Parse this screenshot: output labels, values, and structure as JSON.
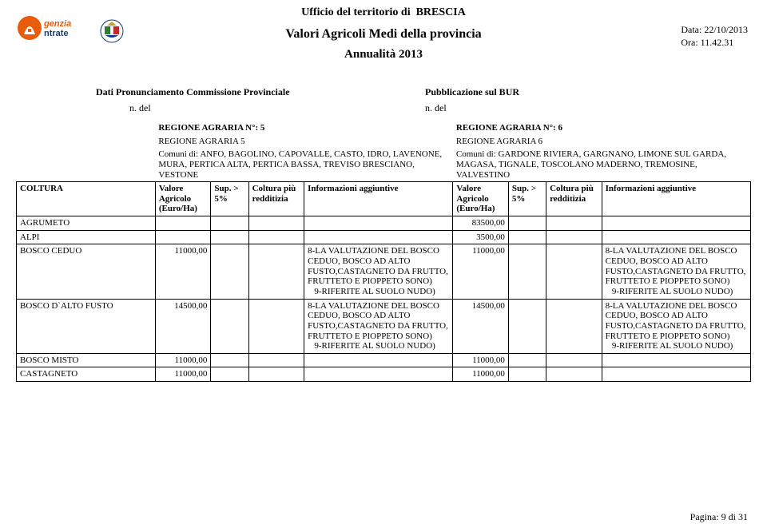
{
  "header": {
    "department_prefix": "Ufficio del territorio di",
    "department_city": "BRESCIA",
    "title": "Valori Agricoli Medi della provincia",
    "year_label": "Annualità  2013",
    "date_label": "Data:",
    "date_value": "22/10/2013",
    "time_label": "Ora:",
    "time_value": "11.42.31"
  },
  "pub": {
    "left": "Dati Pronunciamento Commissione Provinciale",
    "right": "Pubblicazione sul BUR",
    "n_left": "n.  del",
    "n_right": "n.  del"
  },
  "regions": {
    "left": {
      "code_label": "REGIONE AGRARIA N°:",
      "code": "5",
      "name": "REGIONE AGRARIA 5",
      "comuni_label": "Comuni di:",
      "comuni": "ANFO, BAGOLINO, CAPOVALLE, CASTO, IDRO, LAVENONE, MURA, PERTICA ALTA, PERTICA BASSA, TREVISO BRESCIANO, VESTONE"
    },
    "right": {
      "code_label": "REGIONE AGRARIA N°:",
      "code": "6",
      "name": "REGIONE AGRARIA 6",
      "comuni_label": "Comuni di:",
      "comuni": "GARDONE RIVIERA, GARGNANO, LIMONE SUL GARDA, MAGASA, TIGNALE, TOSCOLANO MADERNO, TREMOSINE, VALVESTINO"
    }
  },
  "columns": {
    "coltura": "COLTURA",
    "valore": "Valore Agricolo (Euro/Ha)",
    "sup": "Sup. > 5%",
    "redditizia": "Coltura più redditizia",
    "info": "Informazioni aggiuntive"
  },
  "notes": {
    "note8": "8-LA VALUTAZIONE DEL BOSCO CEDUO, BOSCO AD ALTO FUSTO,CASTAGNETO DA FRUTTO, FRUTTETO E PIOPPETO SONO)",
    "note9": "9-RIFERITE AL SUOLO NUDO)"
  },
  "rows": [
    {
      "label": "AGRUMETO",
      "l_val": "",
      "l_info": "",
      "r_val": "83500,00",
      "r_info": ""
    },
    {
      "label": "ALPI",
      "l_val": "",
      "l_info": "",
      "r_val": "3500,00",
      "r_info": ""
    },
    {
      "label": "BOSCO CEDUO",
      "l_val": "11000,00",
      "l_info": "NOTE",
      "r_val": "11000,00",
      "r_info": "NOTE"
    },
    {
      "label": "BOSCO D`ALTO FUSTO",
      "l_val": "14500,00",
      "l_info": "NOTE",
      "r_val": "14500,00",
      "r_info": "NOTE"
    },
    {
      "label": "BOSCO MISTO",
      "l_val": "11000,00",
      "l_info": "",
      "r_val": "11000,00",
      "r_info": ""
    },
    {
      "label": "CASTAGNETO",
      "l_val": "11000,00",
      "l_info": "",
      "r_val": "11000,00",
      "r_info": ""
    }
  ],
  "footer": {
    "page_label": "Pagina:",
    "page": "9 di 31"
  },
  "colors": {
    "logo_orange": "#e95c0c",
    "logo_navy": "#1b3a66",
    "emblem_gold": "#c9a227",
    "emblem_blue": "#0b3d91",
    "emblem_green": "#2e7d32",
    "emblem_red": "#c62828",
    "text": "#000000",
    "bg": "#ffffff",
    "border": "#000000"
  }
}
